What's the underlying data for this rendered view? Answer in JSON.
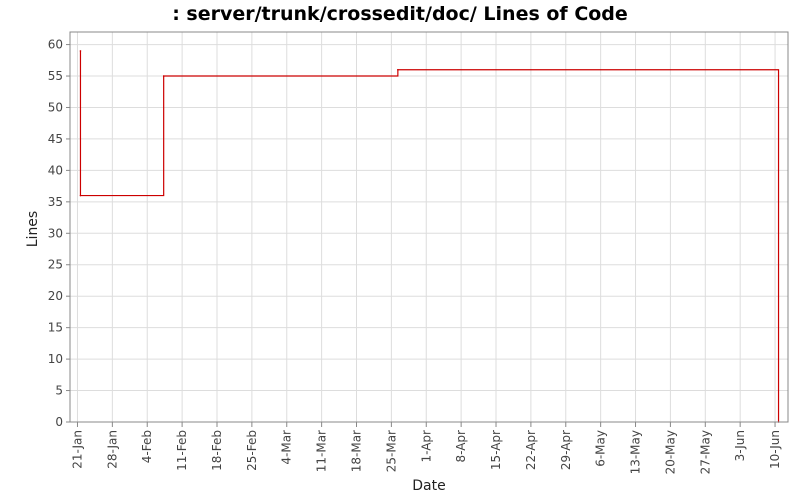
{
  "chart_data": {
    "type": "line",
    "title": ": server/trunk/crossedit/doc/ Lines of Code",
    "xlabel": "Date",
    "ylabel": "Lines",
    "ylim": [
      0,
      62
    ],
    "yticks": [
      0,
      5,
      10,
      15,
      20,
      25,
      30,
      35,
      40,
      45,
      50,
      55,
      60
    ],
    "xticks": [
      "21-Jan",
      "28-Jan",
      "4-Feb",
      "11-Feb",
      "18-Feb",
      "25-Feb",
      "4-Mar",
      "11-Mar",
      "18-Mar",
      "25-Mar",
      "1-Apr",
      "8-Apr",
      "15-Apr",
      "22-Apr",
      "29-Apr",
      "6-May",
      "13-May",
      "20-May",
      "27-May",
      "3-Jun",
      "10-Jun"
    ],
    "xrange_days": [
      -1.5,
      142.6
    ],
    "step_style": "step-after",
    "grid": true,
    "legend": "none",
    "series": [
      {
        "color": "#cc0000",
        "points": [
          {
            "day": 0.6,
            "date": "21-Jan",
            "value": 59
          },
          {
            "day": 0.6,
            "date": "21-Jan",
            "value": 36
          },
          {
            "day": 17.3,
            "date": "7-Feb",
            "value": 55
          },
          {
            "day": 64.3,
            "date": "25-Mar",
            "value": 56
          },
          {
            "day": 140.7,
            "date": "10-Jun",
            "value": 0
          }
        ]
      }
    ]
  }
}
